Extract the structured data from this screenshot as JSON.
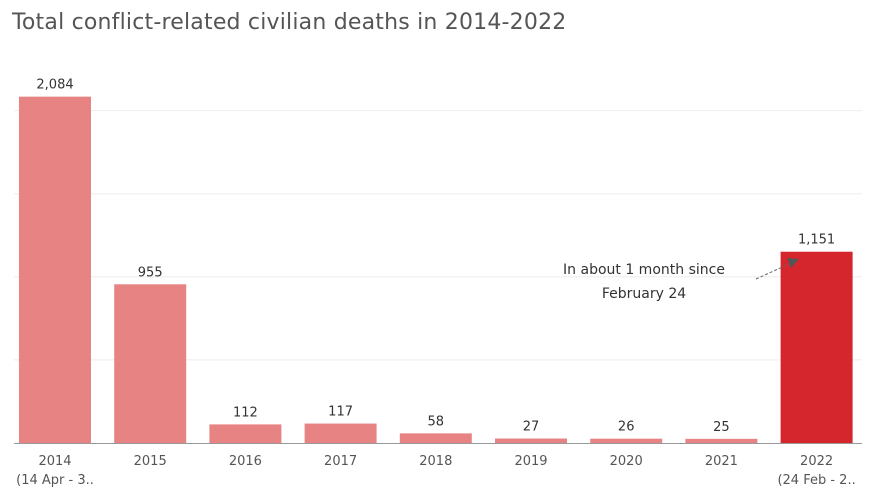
{
  "chart_data": {
    "type": "bar",
    "title": "Total conflict-related civilian deaths in 2014-2022",
    "categories": [
      "2014",
      "2015",
      "2016",
      "2017",
      "2018",
      "2019",
      "2020",
      "2021",
      "2022"
    ],
    "subcategories": [
      "(14 Apr - 3..",
      "",
      "",
      "",
      "",
      "",
      "",
      "",
      "(24 Feb - 2.."
    ],
    "values": [
      2084,
      955,
      112,
      117,
      58,
      27,
      26,
      25,
      1151
    ],
    "value_labels": [
      "2,084",
      "955",
      "112",
      "117",
      "58",
      "27",
      "26",
      "25",
      "1,151"
    ],
    "xlabel": "",
    "ylabel": "",
    "ylim": [
      0,
      2100
    ],
    "grid": true,
    "highlight_index": 8,
    "colors": {
      "bar": "#e88383",
      "highlight": "#d6262d",
      "grid": "#eeeeee",
      "axis": "#999999"
    },
    "annotation": {
      "text_line1": "In about 1 month since",
      "text_line2": "February 24"
    }
  }
}
